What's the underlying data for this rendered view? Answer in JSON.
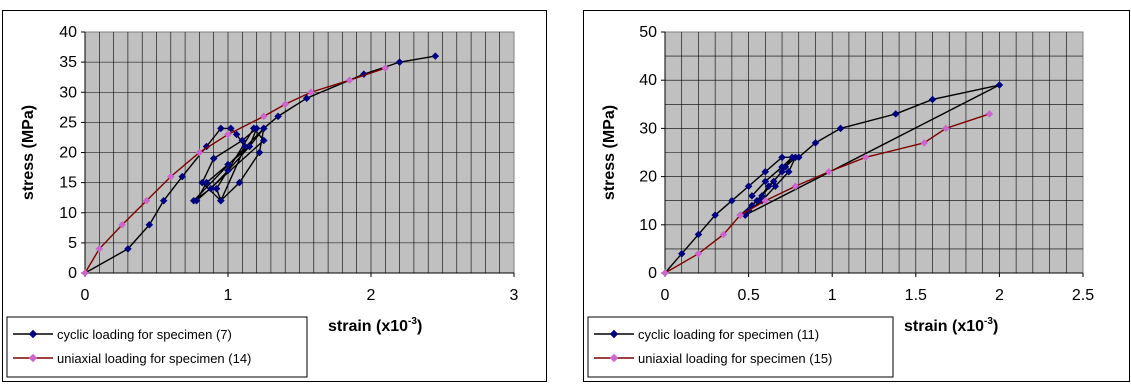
{
  "chart_data": [
    {
      "type": "line",
      "title": "",
      "xlabel": "strain (x10-3)",
      "xlabel_main": "strain (x10",
      "xlabel_sup": "-3",
      "xlabel_close": ")",
      "ylabel": "stress (MPa)",
      "xlim": [
        0,
        3
      ],
      "ylim": [
        0,
        40
      ],
      "xticks": [
        "0",
        "1",
        "2",
        "3"
      ],
      "xtick_values": [
        0,
        1,
        2,
        3
      ],
      "yticks": [
        "0",
        "5",
        "10",
        "15",
        "20",
        "25",
        "30",
        "35",
        "40"
      ],
      "ytick_values": [
        0,
        5,
        10,
        15,
        20,
        25,
        30,
        35,
        40
      ],
      "x_minor_step": 0.1,
      "y_minor_step": 5,
      "grid": true,
      "plot_bg": "#c0c0c0",
      "legend_position": "bottom-left",
      "series": [
        {
          "name": "cyclic loading for specimen (7)",
          "line_color": "#000000",
          "marker_color": "#000080",
          "marker": "diamond",
          "x": [
            0,
            0.3,
            0.45,
            0.55,
            0.68,
            0.85,
            0.95,
            1.02,
            1.06,
            1.12,
            0.95,
            0.92,
            1.18,
            1.25,
            0.78,
            0.85,
            1.0,
            1.15,
            1.2,
            1.1,
            0.9,
            0.82,
            0.95,
            1.08,
            1.22,
            1.25,
            1.15,
            1.0,
            0.88,
            0.76,
            1.25,
            1.35,
            1.55,
            1.95,
            2.2,
            2.45
          ],
          "y": [
            0,
            4,
            8,
            12,
            16,
            21,
            24,
            24,
            23,
            21,
            12,
            14,
            24,
            22,
            12,
            15,
            18,
            21,
            24,
            22,
            19,
            15,
            12,
            15,
            20,
            24,
            21,
            17,
            14,
            12,
            24,
            26,
            29,
            33,
            35,
            36
          ]
        },
        {
          "name": "uniaxial loading for specimen (14)",
          "line_color": "#800000",
          "marker_color": "#cc66cc",
          "marker": "diamond",
          "x": [
            0,
            0.1,
            0.26,
            0.43,
            0.6,
            0.8,
            1.0,
            1.25,
            1.4,
            1.58,
            1.85,
            2.1
          ],
          "y": [
            0,
            4,
            8,
            12,
            16,
            20,
            23,
            26,
            28,
            30,
            32,
            34
          ]
        }
      ]
    },
    {
      "type": "line",
      "title": "",
      "xlabel": "strain (x10-3)",
      "xlabel_main": "strain (x10",
      "xlabel_sup": "-3",
      "xlabel_close": ")",
      "ylabel": "stress (MPa)",
      "xlim": [
        0,
        2.5
      ],
      "ylim": [
        0,
        50
      ],
      "xticks": [
        "0",
        "0.5",
        "1",
        "1.5",
        "2",
        "2.5"
      ],
      "xtick_values": [
        0,
        0.5,
        1,
        1.5,
        2,
        2.5
      ],
      "yticks": [
        "0",
        "10",
        "20",
        "30",
        "40",
        "50"
      ],
      "ytick_values": [
        0,
        10,
        20,
        30,
        40,
        50
      ],
      "x_minor_step": 0.1,
      "y_minor_step": 5,
      "grid": true,
      "plot_bg": "#c0c0c0",
      "legend_position": "bottom-left",
      "series": [
        {
          "name": "cyclic loading for specimen (11)",
          "line_color": "#000000",
          "marker_color": "#000080",
          "marker": "diamond",
          "x": [
            0,
            0.1,
            0.2,
            0.3,
            0.4,
            0.5,
            0.6,
            0.7,
            0.8,
            0.9,
            1.05,
            1.38,
            1.6,
            2.0,
            0.48,
            0.52,
            0.58,
            0.65,
            0.72,
            0.78,
            0.74,
            0.66,
            0.58,
            0.5,
            0.45,
            0.55,
            0.62,
            0.7,
            0.76,
            0.7,
            0.6,
            0.52
          ],
          "y": [
            0,
            4,
            8,
            12,
            15,
            18,
            21,
            24,
            24,
            27,
            30,
            33,
            36,
            39,
            12,
            14,
            16,
            19,
            22,
            24,
            21,
            18,
            15,
            13,
            12,
            15,
            18,
            21,
            24,
            22,
            19,
            16
          ]
        },
        {
          "name": "uniaxial loading for specimen (15)",
          "line_color": "#800000",
          "marker_color": "#cc66cc",
          "marker": "diamond",
          "x": [
            0,
            0.2,
            0.35,
            0.45,
            0.6,
            0.78,
            0.98,
            1.2,
            1.55,
            1.68,
            1.94
          ],
          "y": [
            0,
            4,
            8,
            12,
            15,
            18,
            21,
            24,
            27,
            30,
            33
          ]
        }
      ]
    }
  ]
}
